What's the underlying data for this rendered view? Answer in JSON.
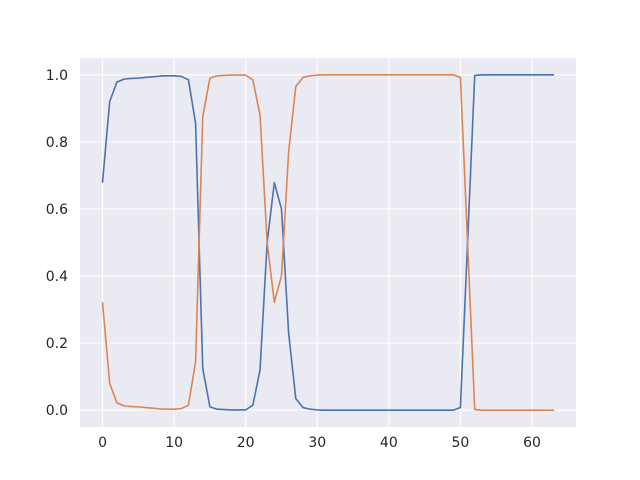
{
  "chart_data": {
    "type": "line",
    "title": "",
    "xlabel": "",
    "ylabel": "",
    "xlim": [
      -3.15,
      66.15
    ],
    "ylim": [
      -0.05,
      1.05
    ],
    "xticks": [
      0,
      10,
      20,
      30,
      40,
      50,
      60
    ],
    "xtick_labels": [
      "0",
      "10",
      "20",
      "30",
      "40",
      "50",
      "60"
    ],
    "yticks": [
      0.0,
      0.2,
      0.4,
      0.6,
      0.8,
      1.0
    ],
    "ytick_labels": [
      "0.0",
      "0.2",
      "0.4",
      "0.6",
      "0.8",
      "1.0"
    ],
    "grid": true,
    "background": "#eaeaf2",
    "x": [
      0,
      1,
      2,
      3,
      4,
      5,
      6,
      7,
      8,
      9,
      10,
      11,
      12,
      13,
      14,
      15,
      16,
      17,
      18,
      19,
      20,
      21,
      22,
      23,
      24,
      25,
      26,
      27,
      28,
      29,
      30,
      31,
      32,
      33,
      34,
      35,
      36,
      37,
      38,
      39,
      40,
      41,
      42,
      43,
      44,
      45,
      46,
      47,
      48,
      49,
      50,
      51,
      52,
      53,
      54,
      55,
      56,
      57,
      58,
      59,
      60,
      61,
      62,
      63
    ],
    "series": [
      {
        "color": "#4c72b0",
        "values": [
          0.68,
          0.92,
          0.978,
          0.987,
          0.989,
          0.99,
          0.992,
          0.994,
          0.996,
          0.997,
          0.997,
          0.995,
          0.985,
          0.855,
          0.125,
          0.01,
          0.003,
          0.002,
          0.001,
          0.001,
          0.001,
          0.015,
          0.12,
          0.5,
          0.678,
          0.6,
          0.23,
          0.035,
          0.008,
          0.003,
          0.001,
          0.0,
          0.0,
          0.0,
          0.0,
          0.0,
          0.0,
          0.0,
          0.0,
          0.0,
          0.0,
          0.0,
          0.0,
          0.0,
          0.0,
          0.0,
          0.0,
          0.0,
          0.0,
          0.0,
          0.008,
          0.5,
          0.998,
          1.0,
          1.0,
          1.0,
          1.0,
          1.0,
          1.0,
          1.0,
          1.0,
          1.0,
          1.0,
          1.0
        ]
      },
      {
        "color": "#dd8452",
        "values": [
          0.32,
          0.08,
          0.022,
          0.013,
          0.011,
          0.01,
          0.008,
          0.006,
          0.004,
          0.003,
          0.003,
          0.005,
          0.015,
          0.145,
          0.875,
          0.99,
          0.997,
          0.998,
          0.999,
          0.999,
          0.999,
          0.985,
          0.88,
          0.5,
          0.322,
          0.4,
          0.77,
          0.965,
          0.992,
          0.997,
          0.999,
          1.0,
          1.0,
          1.0,
          1.0,
          1.0,
          1.0,
          1.0,
          1.0,
          1.0,
          1.0,
          1.0,
          1.0,
          1.0,
          1.0,
          1.0,
          1.0,
          1.0,
          1.0,
          1.0,
          0.992,
          0.5,
          0.002,
          0.0,
          0.0,
          0.0,
          0.0,
          0.0,
          0.0,
          0.0,
          0.0,
          0.0,
          0.0,
          0.0
        ]
      }
    ]
  }
}
